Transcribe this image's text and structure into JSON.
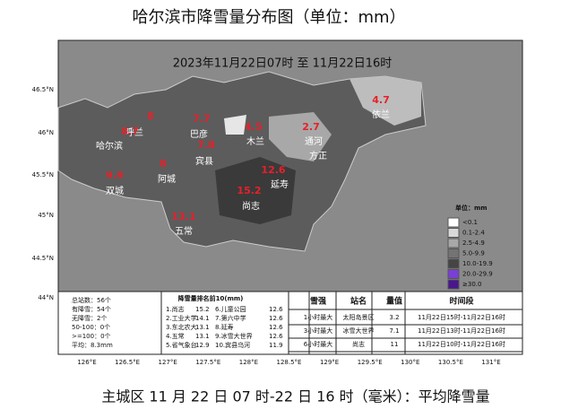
{
  "title": "哈尔滨市降雪量分布图（单位：mm）",
  "subtitle": "2023年11月22日07时 至 11月22日16时",
  "lat_labels": [
    "46.5°N",
    "46°N",
    "45.5°N",
    "45°N",
    "44.5°N",
    "44°N"
  ],
  "lon_labels": [
    "126°E",
    "126.5°E",
    "127°E",
    "127.5°E",
    "128°E",
    "128.5°E",
    "129°E",
    "129.5°E",
    "130°E",
    "130.5°E",
    "131°E"
  ],
  "places": [
    {
      "name": "呼兰",
      "value": 8
    },
    {
      "name": "哈尔滨",
      "value": 8.7
    },
    {
      "name": "巴彦",
      "value": 7.7
    },
    {
      "name": "宾县",
      "value": 7.8
    },
    {
      "name": "木兰",
      "value": 4.5
    },
    {
      "name": "通河",
      "value": 2.7
    },
    {
      "name": "方正"
    },
    {
      "name": "依兰",
      "value": 4.7
    },
    {
      "name": "延寿",
      "value": 12.6
    },
    {
      "name": "尚志",
      "value": 15.2
    },
    {
      "name": "阿城",
      "value": 8
    },
    {
      "name": "双城",
      "value": 9.9
    },
    {
      "name": "五常",
      "value": 13.1
    }
  ],
  "legend": {
    "title": "单位：mm",
    "items": [
      {
        "label": "<0.1",
        "color": "#ffffff"
      },
      {
        "label": "0.1-2.4",
        "color": "#d9d9d9"
      },
      {
        "label": "2.5-4.9",
        "color": "#a8a8a8"
      },
      {
        "label": "5.0-9.9",
        "color": "#747474"
      },
      {
        "label": "10.0-19.9",
        "color": "#454545"
      },
      {
        "label": "20.0-29.9",
        "color": "#7a3fd6"
      },
      {
        "label": "≥30.0",
        "color": "#4a168c"
      }
    ]
  },
  "stats": [
    "总站数：56个",
    "有降雪：54个",
    "无降雪：2个",
    "50-100：0个",
    ">=100：0个",
    "平均：8.3mm"
  ],
  "ranking": {
    "title": "降雪量排名前10(mm)",
    "rows": [
      [
        "1.尚志",
        15.2,
        "6.儿童公园",
        12.6
      ],
      [
        "2.工业大学",
        14.1,
        "7.第六中学",
        12.6
      ],
      [
        "3.东北农大",
        13.1,
        "8.延寿",
        12.6
      ],
      [
        "4.五常",
        13.1,
        "9.冰雪大世界",
        12.6
      ],
      [
        "5.省气象台",
        12.9,
        "10.宾县乌河",
        11.9
      ]
    ]
  },
  "intensity": {
    "header": [
      "雪强",
      "站名",
      "量值",
      "时间段"
    ],
    "rows": [
      [
        "1小时最大",
        "太阳岛景区",
        3.2,
        "11月22日15时-11月22日16时"
      ],
      [
        "3小时最大",
        "冰雪大世界",
        7.1,
        "11月22日13时-11月22日16时"
      ],
      [
        "6小时最大",
        "尚志",
        11,
        "11月22日10时-11月22日16时"
      ]
    ]
  },
  "footer": "主城区 11 月 22 日 07 时-22 日 16 时（毫米）：平均降雪量"
}
